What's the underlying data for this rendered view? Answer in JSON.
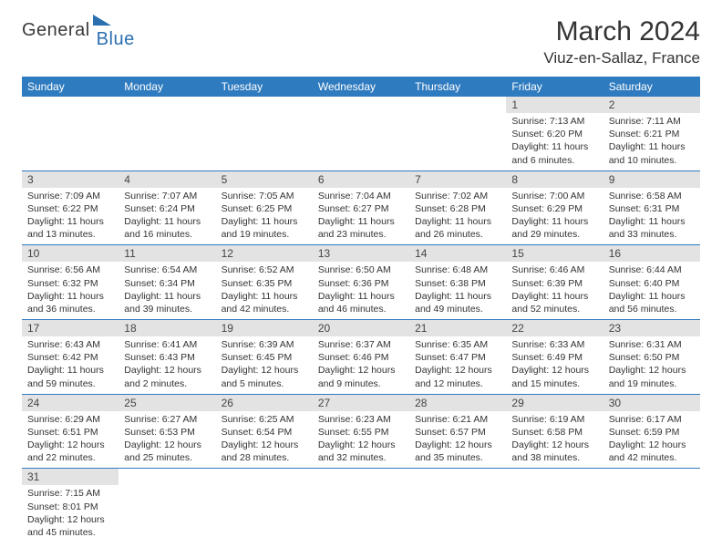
{
  "brand": {
    "part1": "General",
    "part2": "Blue"
  },
  "title": "March 2024",
  "location": "Viuz-en-Sallaz, France",
  "colors": {
    "header_bg": "#2f7bbf",
    "daynum_bg": "#e3e3e3",
    "border": "#2f7bbf",
    "brand_blue": "#2b6fb0"
  },
  "weekdays": [
    "Sunday",
    "Monday",
    "Tuesday",
    "Wednesday",
    "Thursday",
    "Friday",
    "Saturday"
  ],
  "grid": [
    [
      null,
      null,
      null,
      null,
      null,
      {
        "n": "1",
        "sr": "Sunrise: 7:13 AM",
        "ss": "Sunset: 6:20 PM",
        "d1": "Daylight: 11 hours",
        "d2": "and 6 minutes."
      },
      {
        "n": "2",
        "sr": "Sunrise: 7:11 AM",
        "ss": "Sunset: 6:21 PM",
        "d1": "Daylight: 11 hours",
        "d2": "and 10 minutes."
      }
    ],
    [
      {
        "n": "3",
        "sr": "Sunrise: 7:09 AM",
        "ss": "Sunset: 6:22 PM",
        "d1": "Daylight: 11 hours",
        "d2": "and 13 minutes."
      },
      {
        "n": "4",
        "sr": "Sunrise: 7:07 AM",
        "ss": "Sunset: 6:24 PM",
        "d1": "Daylight: 11 hours",
        "d2": "and 16 minutes."
      },
      {
        "n": "5",
        "sr": "Sunrise: 7:05 AM",
        "ss": "Sunset: 6:25 PM",
        "d1": "Daylight: 11 hours",
        "d2": "and 19 minutes."
      },
      {
        "n": "6",
        "sr": "Sunrise: 7:04 AM",
        "ss": "Sunset: 6:27 PM",
        "d1": "Daylight: 11 hours",
        "d2": "and 23 minutes."
      },
      {
        "n": "7",
        "sr": "Sunrise: 7:02 AM",
        "ss": "Sunset: 6:28 PM",
        "d1": "Daylight: 11 hours",
        "d2": "and 26 minutes."
      },
      {
        "n": "8",
        "sr": "Sunrise: 7:00 AM",
        "ss": "Sunset: 6:29 PM",
        "d1": "Daylight: 11 hours",
        "d2": "and 29 minutes."
      },
      {
        "n": "9",
        "sr": "Sunrise: 6:58 AM",
        "ss": "Sunset: 6:31 PM",
        "d1": "Daylight: 11 hours",
        "d2": "and 33 minutes."
      }
    ],
    [
      {
        "n": "10",
        "sr": "Sunrise: 6:56 AM",
        "ss": "Sunset: 6:32 PM",
        "d1": "Daylight: 11 hours",
        "d2": "and 36 minutes."
      },
      {
        "n": "11",
        "sr": "Sunrise: 6:54 AM",
        "ss": "Sunset: 6:34 PM",
        "d1": "Daylight: 11 hours",
        "d2": "and 39 minutes."
      },
      {
        "n": "12",
        "sr": "Sunrise: 6:52 AM",
        "ss": "Sunset: 6:35 PM",
        "d1": "Daylight: 11 hours",
        "d2": "and 42 minutes."
      },
      {
        "n": "13",
        "sr": "Sunrise: 6:50 AM",
        "ss": "Sunset: 6:36 PM",
        "d1": "Daylight: 11 hours",
        "d2": "and 46 minutes."
      },
      {
        "n": "14",
        "sr": "Sunrise: 6:48 AM",
        "ss": "Sunset: 6:38 PM",
        "d1": "Daylight: 11 hours",
        "d2": "and 49 minutes."
      },
      {
        "n": "15",
        "sr": "Sunrise: 6:46 AM",
        "ss": "Sunset: 6:39 PM",
        "d1": "Daylight: 11 hours",
        "d2": "and 52 minutes."
      },
      {
        "n": "16",
        "sr": "Sunrise: 6:44 AM",
        "ss": "Sunset: 6:40 PM",
        "d1": "Daylight: 11 hours",
        "d2": "and 56 minutes."
      }
    ],
    [
      {
        "n": "17",
        "sr": "Sunrise: 6:43 AM",
        "ss": "Sunset: 6:42 PM",
        "d1": "Daylight: 11 hours",
        "d2": "and 59 minutes."
      },
      {
        "n": "18",
        "sr": "Sunrise: 6:41 AM",
        "ss": "Sunset: 6:43 PM",
        "d1": "Daylight: 12 hours",
        "d2": "and 2 minutes."
      },
      {
        "n": "19",
        "sr": "Sunrise: 6:39 AM",
        "ss": "Sunset: 6:45 PM",
        "d1": "Daylight: 12 hours",
        "d2": "and 5 minutes."
      },
      {
        "n": "20",
        "sr": "Sunrise: 6:37 AM",
        "ss": "Sunset: 6:46 PM",
        "d1": "Daylight: 12 hours",
        "d2": "and 9 minutes."
      },
      {
        "n": "21",
        "sr": "Sunrise: 6:35 AM",
        "ss": "Sunset: 6:47 PM",
        "d1": "Daylight: 12 hours",
        "d2": "and 12 minutes."
      },
      {
        "n": "22",
        "sr": "Sunrise: 6:33 AM",
        "ss": "Sunset: 6:49 PM",
        "d1": "Daylight: 12 hours",
        "d2": "and 15 minutes."
      },
      {
        "n": "23",
        "sr": "Sunrise: 6:31 AM",
        "ss": "Sunset: 6:50 PM",
        "d1": "Daylight: 12 hours",
        "d2": "and 19 minutes."
      }
    ],
    [
      {
        "n": "24",
        "sr": "Sunrise: 6:29 AM",
        "ss": "Sunset: 6:51 PM",
        "d1": "Daylight: 12 hours",
        "d2": "and 22 minutes."
      },
      {
        "n": "25",
        "sr": "Sunrise: 6:27 AM",
        "ss": "Sunset: 6:53 PM",
        "d1": "Daylight: 12 hours",
        "d2": "and 25 minutes."
      },
      {
        "n": "26",
        "sr": "Sunrise: 6:25 AM",
        "ss": "Sunset: 6:54 PM",
        "d1": "Daylight: 12 hours",
        "d2": "and 28 minutes."
      },
      {
        "n": "27",
        "sr": "Sunrise: 6:23 AM",
        "ss": "Sunset: 6:55 PM",
        "d1": "Daylight: 12 hours",
        "d2": "and 32 minutes."
      },
      {
        "n": "28",
        "sr": "Sunrise: 6:21 AM",
        "ss": "Sunset: 6:57 PM",
        "d1": "Daylight: 12 hours",
        "d2": "and 35 minutes."
      },
      {
        "n": "29",
        "sr": "Sunrise: 6:19 AM",
        "ss": "Sunset: 6:58 PM",
        "d1": "Daylight: 12 hours",
        "d2": "and 38 minutes."
      },
      {
        "n": "30",
        "sr": "Sunrise: 6:17 AM",
        "ss": "Sunset: 6:59 PM",
        "d1": "Daylight: 12 hours",
        "d2": "and 42 minutes."
      }
    ],
    [
      {
        "n": "31",
        "sr": "Sunrise: 7:15 AM",
        "ss": "Sunset: 8:01 PM",
        "d1": "Daylight: 12 hours",
        "d2": "and 45 minutes."
      },
      null,
      null,
      null,
      null,
      null,
      null
    ]
  ]
}
